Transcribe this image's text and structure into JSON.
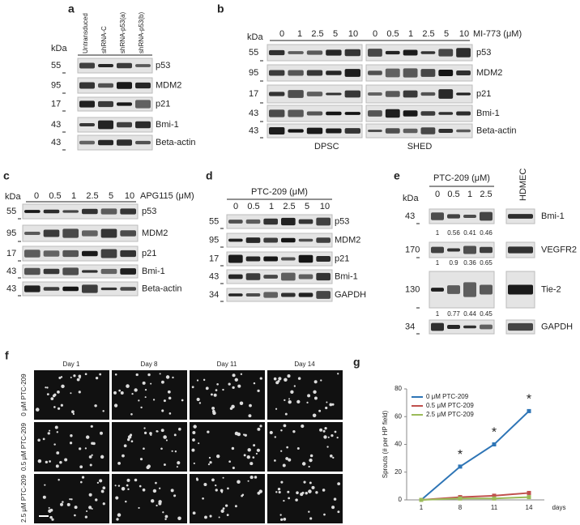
{
  "panels": {
    "a": {
      "letter": "a",
      "unit": "kDa",
      "lanes": [
        "Untransduced",
        "shRNA-C",
        "shRNA-p53(a)",
        "shRNA-p53(b)"
      ],
      "markers": [
        "55",
        "95",
        "17",
        "43",
        "43"
      ],
      "proteins": [
        "p53",
        "MDM2",
        "p21",
        "Bmi-1",
        "Beta-actin"
      ]
    },
    "b": {
      "letter": "b",
      "unit": "kDa",
      "treatment": "MI-773 (μM)",
      "lanes_left": [
        "0",
        "1",
        "2.5",
        "5",
        "10"
      ],
      "lanes_right": [
        "0",
        "0.5",
        "1",
        "2.5",
        "5",
        "10"
      ],
      "markers": [
        "55",
        "95",
        "17",
        "43",
        "43"
      ],
      "proteins": [
        "p53",
        "MDM2",
        "p21",
        "Bmi-1",
        "Beta-actin"
      ],
      "cell_types": [
        "DPSC",
        "SHED"
      ]
    },
    "c": {
      "letter": "c",
      "unit": "kDa",
      "treatment": "APG115 (μM)",
      "lanes": [
        "0",
        "0.5",
        "1",
        "2.5",
        "5",
        "10"
      ],
      "markers": [
        "55",
        "95",
        "17",
        "43",
        "43"
      ],
      "proteins": [
        "p53",
        "MDM2",
        "p21",
        "Bmi-1",
        "Beta-actin"
      ]
    },
    "d": {
      "letter": "d",
      "treatment": "PTC-209 (μM)",
      "lanes": [
        "0",
        "0.5",
        "1",
        "2.5",
        "5",
        "10"
      ],
      "markers": [
        "55",
        "95",
        "17",
        "43",
        "34"
      ],
      "proteins": [
        "p53",
        "MDM2",
        "p21",
        "Bmi-1",
        "GAPDH"
      ]
    },
    "e": {
      "letter": "e",
      "unit": "kDa",
      "treatment": "PTC-209 (μM)",
      "lanes": [
        "0",
        "0.5",
        "1",
        "2.5"
      ],
      "control": "HDMEC",
      "markers": [
        "43",
        "170",
        "130",
        "34"
      ],
      "proteins": [
        "Bmi-1",
        "VEGFR2",
        "Tie-2",
        "GAPDH"
      ],
      "quantification": [
        [
          1,
          0.56,
          0.41,
          0.46
        ],
        [
          1,
          0.9,
          0.36,
          0.65
        ],
        [
          1,
          0.77,
          0.44,
          0.45
        ]
      ]
    },
    "f": {
      "letter": "f",
      "days": [
        "Day 1",
        "Day 8",
        "Day 11",
        "Day 14"
      ],
      "rows": [
        "0 μM PTC-209",
        "0.5 μM PTC-209",
        "2.5 μM PTC-209"
      ]
    }
  },
  "chart_data": {
    "type": "line",
    "panel_label": "g",
    "y_label": "Sprouts (# per HP field)",
    "x_label": "days",
    "categories": [
      "1",
      "8",
      "11",
      "14"
    ],
    "series": [
      {
        "name": "0 μM PTC-209",
        "color": "#2e75b6",
        "values": [
          0,
          24,
          40,
          64
        ]
      },
      {
        "name": "0.5 μM PTC-209",
        "color": "#c0504d",
        "values": [
          0,
          2,
          3,
          5
        ]
      },
      {
        "name": "2.5 μM PTC-209",
        "color": "#9bbb59",
        "values": [
          0,
          1,
          1,
          2
        ]
      }
    ],
    "ylim": [
      0,
      80
    ],
    "yticks": [
      0,
      20,
      40,
      60,
      80
    ],
    "annotations": [
      {
        "text": "*",
        "x": "8"
      },
      {
        "text": "*",
        "x": "11"
      },
      {
        "text": "*",
        "x": "14"
      }
    ]
  }
}
